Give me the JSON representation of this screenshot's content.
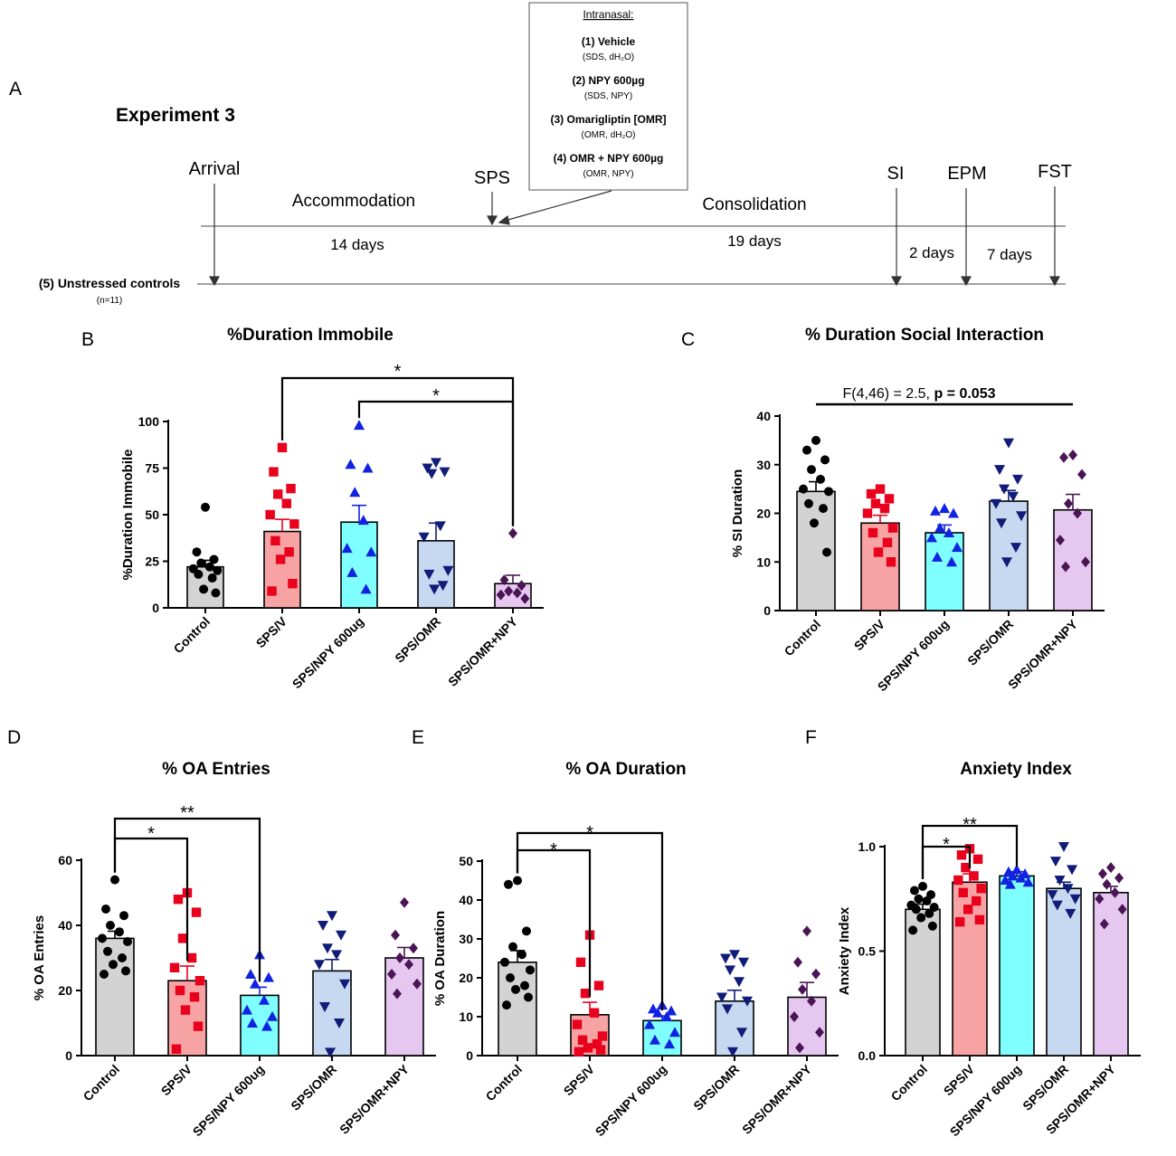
{
  "figure": {
    "panel_a_letter": "A",
    "experiment_title": "Experiment 3",
    "intranasal_box": {
      "heading": "Intranasal:",
      "items": [
        {
          "label": "(1)  Vehicle",
          "detail": "(SDS, dH₂O)"
        },
        {
          "label": "(2) NPY 600µg",
          "detail": "(SDS, NPY)"
        },
        {
          "label": "(3) Omarigliptin [OMR]",
          "detail": "(OMR, dH₂O)"
        },
        {
          "label": "(4) OMR + NPY 600µg",
          "detail": "(OMR, NPY)"
        }
      ]
    },
    "timeline": {
      "events": [
        "Arrival",
        "SPS",
        "SI",
        "EPM",
        "FST"
      ],
      "phases": [
        "Accommodation",
        "Consolidation"
      ],
      "durations": [
        "14 days",
        "19 days",
        "2 days",
        "7 days"
      ],
      "controls_label": "(5) Unstressed controls",
      "controls_n": "(n=11)"
    }
  },
  "chart_data": [
    {
      "id": "B",
      "letter": "B",
      "type": "bar",
      "title": "%Duration Immobile",
      "ylabel": "%Duration  Immobile",
      "xlabel": "",
      "categories": [
        "Control",
        "SPS/V",
        "SPS/NPY 600ug",
        "SPS/OMR",
        "SPS/OMR+NPY"
      ],
      "values": [
        22,
        41,
        46,
        36,
        13
      ],
      "sem": [
        3.5,
        6.5,
        9,
        9.5,
        4.5
      ],
      "ylim": [
        0,
        100
      ],
      "yticks": [
        0,
        25,
        50,
        75,
        100
      ],
      "tick_labels": [
        "0",
        "25",
        "50",
        "75",
        "100"
      ],
      "points": [
        [
          54,
          30,
          26,
          24,
          22,
          21,
          20,
          18,
          16,
          10,
          8
        ],
        [
          86,
          73,
          64,
          61,
          56,
          50,
          45,
          36,
          30,
          26,
          13,
          9
        ],
        [
          98,
          77,
          75,
          62,
          47,
          32,
          30,
          19,
          10
        ],
        [
          78,
          75,
          73,
          72,
          44,
          38,
          20,
          18,
          12,
          10
        ],
        [
          40,
          15,
          12,
          9,
          8,
          7,
          5
        ]
      ],
      "comparisons": [
        {
          "from": 1,
          "to": 4,
          "label": "*"
        },
        {
          "from": 2,
          "to": 4,
          "label": "*"
        }
      ],
      "annotation": null
    },
    {
      "id": "C",
      "letter": "C",
      "type": "bar",
      "title": "% Duration Social Interaction",
      "ylabel": "% SI Duration",
      "xlabel": "",
      "categories": [
        "Control",
        "SPS/V",
        "SPS/NPY 600ug",
        "SPS/OMR",
        "SPS/OMR+NPY"
      ],
      "values": [
        24.5,
        18,
        16,
        22.5,
        20.7
      ],
      "sem": [
        2,
        1.6,
        1.6,
        2.2,
        3.2
      ],
      "ylim": [
        0,
        40
      ],
      "yticks": [
        0,
        10,
        20,
        30,
        40
      ],
      "tick_labels": [
        "0",
        "10",
        "20",
        "30",
        "40"
      ],
      "points": [
        [
          35,
          33,
          31,
          29,
          27,
          25,
          24.5,
          22,
          21,
          18,
          12
        ],
        [
          25,
          24,
          23,
          22,
          21,
          20,
          17,
          16,
          14,
          12,
          10
        ],
        [
          21,
          20.5,
          20,
          17,
          16,
          15,
          13,
          11,
          10
        ],
        [
          34.5,
          29,
          27,
          25,
          23.5,
          22,
          19.5,
          18,
          13,
          10
        ],
        [
          32,
          31.5,
          28,
          22,
          20,
          14.5,
          10,
          9
        ]
      ],
      "comparisons": [],
      "annotation": {
        "prefix": "F(4,46) = 2.5,",
        "emphasis": "p = 0.053"
      }
    },
    {
      "id": "D",
      "letter": "D",
      "type": "bar",
      "title": "% OA Entries",
      "ylabel": "% OA Entries",
      "xlabel": "",
      "categories": [
        "Control",
        "SPS/V",
        "SPS/NPY 600ug",
        "SPS/OMR",
        "SPS/OMR+NPY"
      ],
      "values": [
        36,
        23,
        18.5,
        26,
        30
      ],
      "sem": [
        2.2,
        4.5,
        2.5,
        3.5,
        3.2
      ],
      "ylim": [
        0,
        60
      ],
      "yticks": [
        0,
        20,
        40,
        60
      ],
      "tick_labels": [
        "0",
        "20",
        "40",
        "60"
      ],
      "points": [
        [
          54,
          45,
          43,
          40,
          38,
          36,
          35,
          32,
          30,
          28,
          26,
          25
        ],
        [
          50,
          48,
          44,
          36,
          30,
          27,
          23,
          20,
          18,
          14,
          9,
          2
        ],
        [
          31,
          25,
          24,
          22,
          17,
          14,
          12,
          10,
          9
        ],
        [
          43,
          40,
          37,
          33,
          31,
          28,
          22,
          15,
          10,
          1
        ],
        [
          47,
          37,
          33,
          30,
          28,
          25,
          22,
          19
        ]
      ],
      "comparisons": [
        {
          "from": 0,
          "to": 1,
          "label": "*"
        },
        {
          "from": 0,
          "to": 2,
          "label": "**"
        }
      ],
      "annotation": null
    },
    {
      "id": "E",
      "letter": "E",
      "type": "bar",
      "title": "% OA Duration",
      "ylabel": "% OA Duration",
      "xlabel": "",
      "categories": [
        "Control",
        "SPS/V",
        "SPS/NPY 600ug",
        "SPS/OMR",
        "SPS/OMR+NPY"
      ],
      "values": [
        24,
        10.5,
        9,
        14,
        15
      ],
      "sem": [
        3,
        3.2,
        1.2,
        2.8,
        3.8
      ],
      "ylim": [
        0,
        50
      ],
      "yticks": [
        0,
        10,
        20,
        30,
        40,
        50
      ],
      "tick_labels": [
        "0",
        "10",
        "20",
        "30",
        "40",
        "50"
      ],
      "points": [
        [
          45,
          44,
          32,
          28,
          26,
          24,
          22,
          20,
          18,
          17,
          15,
          13
        ],
        [
          31,
          24,
          18,
          16,
          11,
          8,
          5,
          4,
          3,
          2,
          1.5,
          1
        ],
        [
          13,
          12,
          11.5,
          11,
          10,
          8,
          6,
          4,
          3
        ],
        [
          26,
          25,
          24,
          22,
          19,
          15,
          14,
          12,
          6,
          1
        ],
        [
          32,
          24,
          21,
          17,
          14,
          10,
          6,
          2
        ]
      ],
      "comparisons": [
        {
          "from": 0,
          "to": 1,
          "label": "*"
        },
        {
          "from": 0,
          "to": 2,
          "label": "*"
        }
      ],
      "annotation": null
    },
    {
      "id": "F",
      "letter": "F",
      "type": "bar",
      "title": "Anxiety Index",
      "ylabel": "Anxiety Index",
      "xlabel": "",
      "categories": [
        "Control",
        "SPS/V",
        "SPS/NPY 600ug",
        "SPS/OMR",
        "SPS/OMR+NPY"
      ],
      "values": [
        0.7,
        0.83,
        0.86,
        0.8,
        0.78
      ],
      "sem": [
        0.025,
        0.04,
        0.02,
        0.03,
        0.03
      ],
      "ylim": [
        0,
        1.1
      ],
      "yticks": [
        0,
        0.5,
        1.0
      ],
      "tick_labels": [
        "0.0",
        "0.5",
        "1.0"
      ],
      "points": [
        [
          0.81,
          0.79,
          0.77,
          0.75,
          0.74,
          0.72,
          0.71,
          0.7,
          0.68,
          0.66,
          0.62,
          0.6
        ],
        [
          0.99,
          0.96,
          0.94,
          0.9,
          0.86,
          0.84,
          0.8,
          0.78,
          0.74,
          0.7,
          0.65,
          0.64
        ],
        [
          0.89,
          0.88,
          0.87,
          0.86,
          0.85,
          0.84,
          0.83,
          0.82
        ],
        [
          1.0,
          0.93,
          0.89,
          0.84,
          0.8,
          0.77,
          0.75,
          0.72,
          0.68
        ],
        [
          0.9,
          0.87,
          0.85,
          0.82,
          0.78,
          0.75,
          0.7,
          0.63
        ]
      ],
      "comparisons": [
        {
          "from": 0,
          "to": 1,
          "label": "*"
        },
        {
          "from": 0,
          "to": 2,
          "label": "**"
        }
      ],
      "annotation": null
    }
  ],
  "groups": [
    {
      "name": "Control",
      "fill": "#d3d3d3",
      "point_color": "#000000",
      "marker": "circle"
    },
    {
      "name": "SPS/V",
      "fill": "#f8a3a3",
      "point_color": "#e8001c",
      "marker": "square"
    },
    {
      "name": "SPS/NPY 600ug",
      "fill": "#7fffff",
      "point_color": "#1122e0",
      "marker": "triangle"
    },
    {
      "name": "SPS/OMR",
      "fill": "#c6d9f1",
      "point_color": "#101c78",
      "marker": "triangle-down"
    },
    {
      "name": "SPS/OMR+NPY",
      "fill": "#e6c7f0",
      "point_color": "#4b1555",
      "marker": "diamond"
    }
  ]
}
